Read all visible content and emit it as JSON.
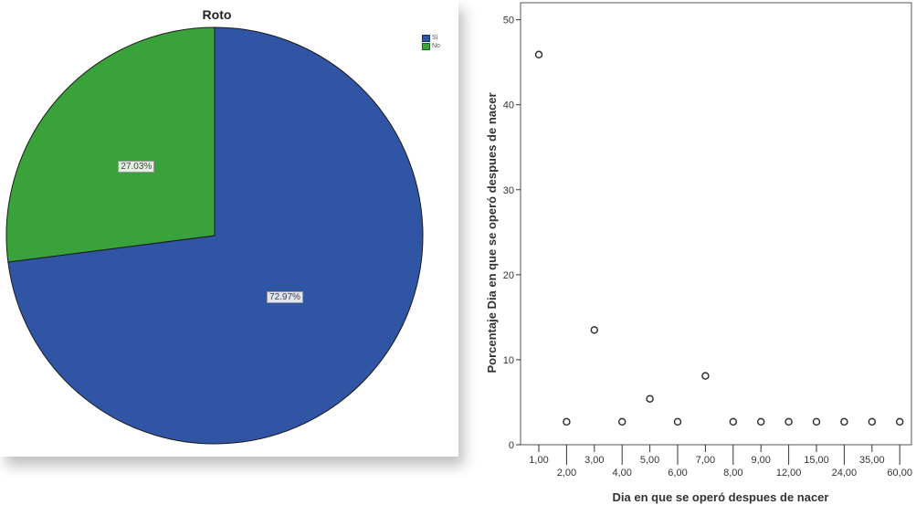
{
  "chart_data": [
    {
      "type": "pie",
      "title": "Roto",
      "legend": {
        "placement": "top-right",
        "entries": [
          {
            "label": "Sí",
            "color": "#2f55a4"
          },
          {
            "label": "No",
            "color": "#3aa23a"
          }
        ]
      },
      "slices": [
        {
          "label": "Sí",
          "value": 72.97,
          "display": "72.97%",
          "color": "#2f55a4"
        },
        {
          "label": "No",
          "value": 27.03,
          "display": "27.03%",
          "color": "#3aa23a"
        }
      ]
    },
    {
      "type": "scatter",
      "title": "",
      "xlabel": "Dia en que se operó despues de nacer",
      "ylabel": "Porcentaje Dia en que se operó despues de nacer",
      "ylim": [
        0,
        52
      ],
      "yticks": [
        0,
        10,
        20,
        30,
        40,
        50
      ],
      "grid": false,
      "categories": [
        "1,00",
        "2,00",
        "3,00",
        "4,00",
        "5,00",
        "6,00",
        "7,00",
        "8,00",
        "9,00",
        "12,00",
        "15,00",
        "24,00",
        "35,00",
        "60,00"
      ],
      "values": [
        45.9,
        2.7,
        13.5,
        2.7,
        5.4,
        2.7,
        8.1,
        2.7,
        2.7,
        2.7,
        2.7,
        2.7,
        2.7,
        2.7
      ]
    }
  ]
}
